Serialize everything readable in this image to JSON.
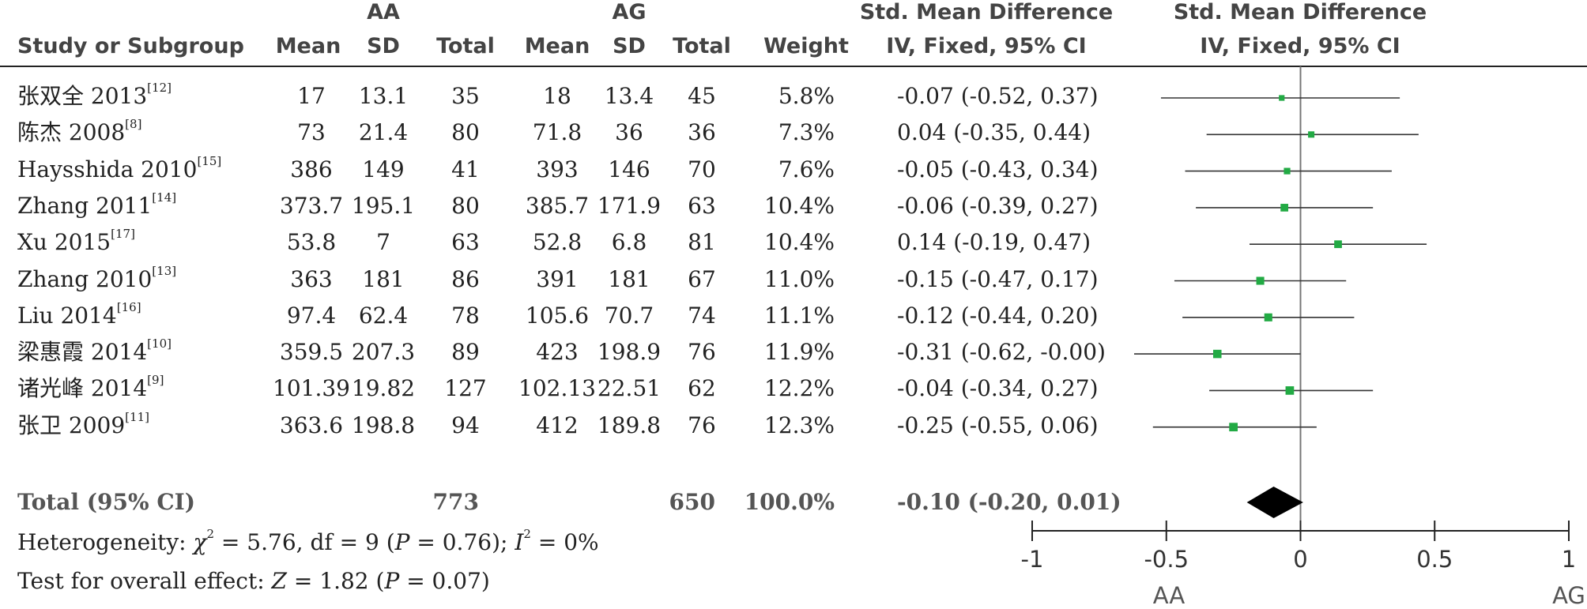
{
  "headers": {
    "study": "Study or Subgroup",
    "group1": "AA",
    "group2": "AG",
    "mean": "Mean",
    "sd": "SD",
    "total": "Total",
    "weight": "Weight",
    "smd_title": "Std. Mean Difference",
    "smd_method": "IV, Fixed, 95% CI",
    "plot_title": "Std. Mean Difference",
    "plot_method": "IV, Fixed, 95% CI"
  },
  "chart_data": {
    "type": "forest",
    "studies": [
      {
        "name": "张双全 2013",
        "ref": "[12]",
        "aa_mean": "17",
        "aa_sd": "13.1",
        "aa_total": "35",
        "ag_mean": "18",
        "ag_sd": "13.4",
        "ag_total": "45",
        "weight": "5.8%",
        "ci_text": "-0.07 (-0.52, 0.37)",
        "est": -0.07,
        "lo": -0.52,
        "hi": 0.37,
        "w": 5.8
      },
      {
        "name": "陈杰 2008",
        "ref": "[8]",
        "aa_mean": "73",
        "aa_sd": "21.4",
        "aa_total": "80",
        "ag_mean": "71.8",
        "ag_sd": "36",
        "ag_total": "36",
        "weight": "7.3%",
        "ci_text": "0.04 (-0.35, 0.44)",
        "est": 0.04,
        "lo": -0.35,
        "hi": 0.44,
        "w": 7.3
      },
      {
        "name": "Haysshida 2010",
        "ref": "[15]",
        "aa_mean": "386",
        "aa_sd": "149",
        "aa_total": "41",
        "ag_mean": "393",
        "ag_sd": "146",
        "ag_total": "70",
        "weight": "7.6%",
        "ci_text": "-0.05 (-0.43, 0.34)",
        "est": -0.05,
        "lo": -0.43,
        "hi": 0.34,
        "w": 7.6
      },
      {
        "name": "Zhang 2011",
        "ref": "[14]",
        "aa_mean": "373.7",
        "aa_sd": "195.1",
        "aa_total": "80",
        "ag_mean": "385.7",
        "ag_sd": "171.9",
        "ag_total": "63",
        "weight": "10.4%",
        "ci_text": "-0.06 (-0.39, 0.27)",
        "est": -0.06,
        "lo": -0.39,
        "hi": 0.27,
        "w": 10.4
      },
      {
        "name": "Xu 2015",
        "ref": "[17]",
        "aa_mean": "53.8",
        "aa_sd": "7",
        "aa_total": "63",
        "ag_mean": "52.8",
        "ag_sd": "6.8",
        "ag_total": "81",
        "weight": "10.4%",
        "ci_text": "0.14 (-0.19, 0.47)",
        "est": 0.14,
        "lo": -0.19,
        "hi": 0.47,
        "w": 10.4
      },
      {
        "name": "Zhang 2010",
        "ref": "[13]",
        "aa_mean": "363",
        "aa_sd": "181",
        "aa_total": "86",
        "ag_mean": "391",
        "ag_sd": "181",
        "ag_total": "67",
        "weight": "11.0%",
        "ci_text": "-0.15 (-0.47, 0.17)",
        "est": -0.15,
        "lo": -0.47,
        "hi": 0.17,
        "w": 11.0
      },
      {
        "name": "Liu 2014",
        "ref": "[16]",
        "aa_mean": "97.4",
        "aa_sd": "62.4",
        "aa_total": "78",
        "ag_mean": "105.6",
        "ag_sd": "70.7",
        "ag_total": "74",
        "weight": "11.1%",
        "ci_text": "-0.12 (-0.44, 0.20)",
        "est": -0.12,
        "lo": -0.44,
        "hi": 0.2,
        "w": 11.1
      },
      {
        "name": "梁惠霞 2014",
        "ref": "[10]",
        "aa_mean": "359.5",
        "aa_sd": "207.3",
        "aa_total": "89",
        "ag_mean": "423",
        "ag_sd": "198.9",
        "ag_total": "76",
        "weight": "11.9%",
        "ci_text": "-0.31 (-0.62, -0.00)",
        "est": -0.31,
        "lo": -0.62,
        "hi": 0.0,
        "w": 11.9
      },
      {
        "name": "诸光峰 2014",
        "ref": "[9]",
        "aa_mean": "101.39",
        "aa_sd": "19.82",
        "aa_total": "127",
        "ag_mean": "102.13",
        "ag_sd": "22.51",
        "ag_total": "62",
        "weight": "12.2%",
        "ci_text": "-0.04 (-0.34, 0.27)",
        "est": -0.04,
        "lo": -0.34,
        "hi": 0.27,
        "w": 12.2
      },
      {
        "name": "张卫 2009",
        "ref": "[11]",
        "aa_mean": "363.6",
        "aa_sd": "198.8",
        "aa_total": "94",
        "ag_mean": "412",
        "ag_sd": "189.8",
        "ag_total": "76",
        "weight": "12.3%",
        "ci_text": "-0.25 (-0.55, 0.06)",
        "est": -0.25,
        "lo": -0.55,
        "hi": 0.06,
        "w": 12.3
      }
    ],
    "total": {
      "label": "Total (95% CI)",
      "aa_total": "773",
      "ag_total": "650",
      "weight": "100.0%",
      "ci_text": "-0.10 (-0.20, 0.01)",
      "est": -0.1,
      "lo": -0.2,
      "hi": 0.01
    },
    "heterogeneity": {
      "prefix": "Heterogeneity: ",
      "chi_sym": "χ",
      "chi_rest": " = 5.76, df = 9 (",
      "p_sym": "P",
      "p_rest": " = 0.76); ",
      "i_sym": "I",
      "i_rest": " = 0%"
    },
    "overall": {
      "prefix": "Test for overall effect: ",
      "z_sym": "Z",
      "z_rest": " = 1.82 (",
      "p_sym": "P",
      "p_rest": " = 0.07)"
    },
    "axis": {
      "xlim": [
        -1,
        1
      ],
      "ticks": [
        -1,
        -0.5,
        0,
        0.5,
        1
      ],
      "tick_labels": [
        "-1",
        "-0.5",
        "0",
        "0.5",
        "1"
      ]
    },
    "favours_left": "AA",
    "favours_right": "AG",
    "marker_color": "#22aa44"
  }
}
